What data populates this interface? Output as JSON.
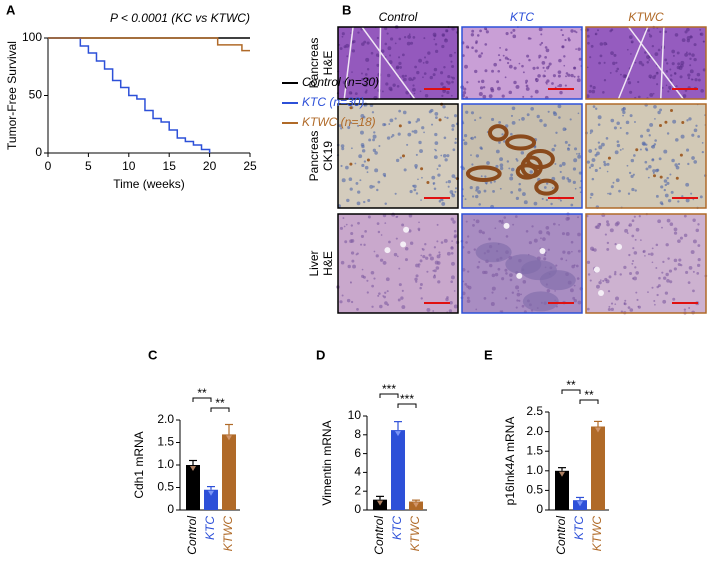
{
  "histology": {
    "label": "B",
    "columns": [
      {
        "name": "Control",
        "color": "#000000"
      },
      {
        "name": "KTC",
        "color": "#2d50d8"
      },
      {
        "name": "KTWC",
        "color": "#b06a28"
      }
    ],
    "rows": [
      [
        "Pancreas",
        "H&E"
      ],
      [
        "Pancreas",
        "CK19"
      ],
      [
        "Liver",
        "H&E"
      ]
    ]
  },
  "chart_data": [
    {
      "label": "A",
      "type": "line",
      "step": true,
      "title": "P < 0.0001 (KC vs KTWC)",
      "xlabel": "Time (weeks)",
      "ylabel": "Tumor-Free Survival",
      "xlim": [
        0,
        25
      ],
      "xticks": [
        0,
        5,
        10,
        15,
        20,
        25
      ],
      "ylim": [
        0,
        100
      ],
      "yticks": [
        0,
        50,
        100
      ],
      "series": [
        {
          "name": "Control (n=30)",
          "color": "#000000",
          "x": [
            0,
            25
          ],
          "values": [
            100,
            100
          ]
        },
        {
          "name": "KTC (n=30)",
          "color": "#2d50d8",
          "x": [
            0,
            4,
            5,
            6,
            7,
            8,
            9,
            10,
            11,
            12,
            13,
            14,
            15,
            16,
            17,
            18,
            19,
            20
          ],
          "values": [
            100,
            93,
            87,
            80,
            73,
            63,
            57,
            50,
            47,
            37,
            30,
            27,
            20,
            13,
            10,
            7,
            3,
            0
          ]
        },
        {
          "name": "KTWC (n=18)",
          "color": "#b06a28",
          "x": [
            0,
            21,
            24,
            25
          ],
          "values": [
            100,
            94,
            89,
            89
          ]
        }
      ]
    },
    {
      "label": "C",
      "type": "bar",
      "ylabel": "Cdh1 mRNA",
      "categories": [
        "Control",
        "KTC",
        "KTWC"
      ],
      "colors": [
        "#000000",
        "#2d50d8",
        "#b06a28"
      ],
      "values": [
        1.0,
        0.45,
        1.68
      ],
      "errors": [
        0.1,
        0.07,
        0.22
      ],
      "ylim": [
        0,
        2
      ],
      "yticks": [
        0,
        0.5,
        {
          "value": 1,
          "label": "1.0"
        },
        1.5,
        {
          "value": 2,
          "label": "2.0"
        }
      ],
      "significance": [
        {
          "label": "**",
          "from": 0,
          "to": 1
        },
        {
          "label": "**",
          "from": 1,
          "to": 2
        }
      ]
    },
    {
      "label": "D",
      "type": "bar",
      "ylabel": "Vimentin mRNA",
      "categories": [
        "Control",
        "KTC",
        "KTWC"
      ],
      "colors": [
        "#000000",
        "#2d50d8",
        "#b06a28"
      ],
      "values": [
        1.1,
        8.5,
        0.9
      ],
      "errors": [
        0.35,
        0.9,
        0.15
      ],
      "ylim": [
        0,
        10
      ],
      "yticks": [
        0,
        2,
        4,
        6,
        8,
        10
      ],
      "significance": [
        {
          "label": "***",
          "from": 0,
          "to": 1
        },
        {
          "label": "***",
          "from": 1,
          "to": 2
        }
      ]
    },
    {
      "label": "E",
      "type": "bar",
      "ylabel": "p16Ink4A mRNA",
      "categories": [
        "Control",
        "KTC",
        "KTWC"
      ],
      "colors": [
        "#000000",
        "#2d50d8",
        "#b06a28"
      ],
      "values": [
        1.0,
        0.25,
        2.13
      ],
      "errors": [
        0.08,
        0.07,
        0.13
      ],
      "ylim": [
        0,
        2.5
      ],
      "yticks": [
        0,
        0.5,
        {
          "value": 1,
          "label": "1.0"
        },
        1.5,
        {
          "value": 2,
          "label": "2.0"
        },
        2.5
      ],
      "significance": [
        {
          "label": "**",
          "from": 0,
          "to": 1
        },
        {
          "label": "**",
          "from": 1,
          "to": 2
        }
      ]
    }
  ]
}
